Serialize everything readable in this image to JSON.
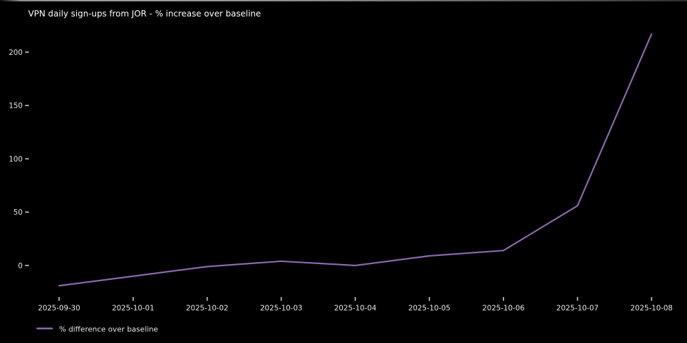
{
  "chart_data": {
    "type": "line",
    "title": "VPN daily sign-ups from JOR - % increase over baseline",
    "categories": [
      "2025-09-30",
      "2025-10-01",
      "2025-10-02",
      "2025-10-03",
      "2025-10-04",
      "2025-10-05",
      "2025-10-06",
      "2025-10-07",
      "2025-10-08"
    ],
    "series": [
      {
        "name": "% difference over baseline",
        "color": "#8c69af",
        "values": [
          -19,
          -10,
          -1,
          4,
          0,
          9,
          14,
          56,
          217
        ]
      }
    ],
    "xlabel": "",
    "ylabel": "",
    "yticks": [
      0,
      50,
      100,
      150,
      200
    ],
    "ylim": [
      -33,
      230
    ],
    "grid": false,
    "legend": {
      "position": "lower-left",
      "label": "% difference over baseline"
    },
    "colors": {
      "background": "#000000",
      "title_text": "#ffffff",
      "tick_text": "#e8e8e8",
      "tick_mark": "#cfcfcf",
      "line": "#8c69af"
    }
  }
}
